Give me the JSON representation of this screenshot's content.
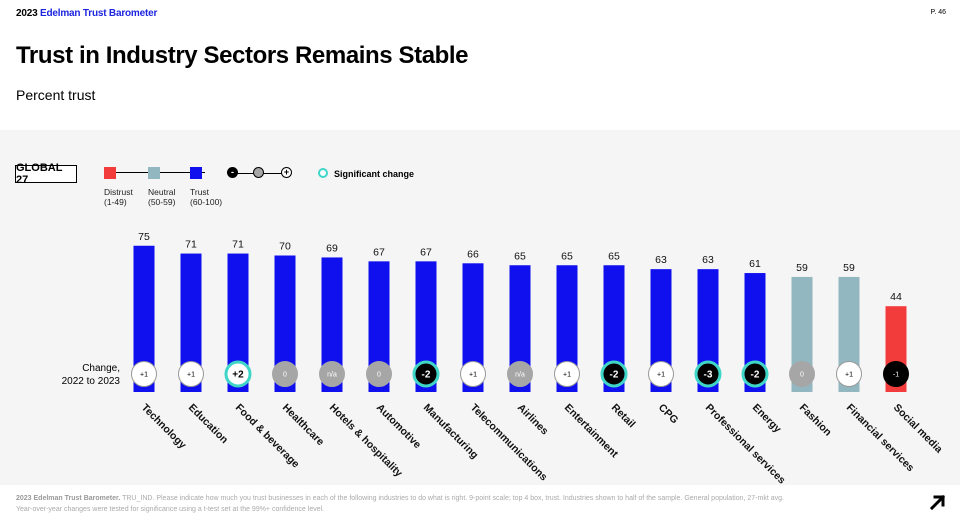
{
  "header": {
    "brand_year": "2023",
    "brand_name": "Edelman Trust Barometer",
    "page": "P. 46",
    "title": "Trust in Industry Sectors Remains Stable",
    "subtitle": "Percent trust"
  },
  "legend": {
    "global": "GLOBAL 27",
    "distrust": "Distrust",
    "distrust_range": "(1-49)",
    "neutral": "Neutral",
    "neutral_range": "(50-59)",
    "trust": "Trust",
    "trust_range": "(60-100)",
    "minus": "-",
    "plus": "+",
    "significant": "Significant change"
  },
  "change_caption_1": "Change,",
  "change_caption_2": "2022 to 2023",
  "colors": {
    "trust": "#1010ee",
    "neutral": "#93b7c0",
    "distrust": "#f23b3b",
    "significant_ring": "#3fd6c8",
    "neg_badge": "#000000",
    "zero_badge": "#a6a6a6",
    "pos_badge": "#ffffff",
    "brand": "#1d25e0"
  },
  "chart_data": {
    "type": "bar",
    "categories": [
      "Technology",
      "Education",
      "Food & beverage",
      "Healthcare",
      "Hotels & hospitality",
      "Automotive",
      "Manufacturing",
      "Telecommunications",
      "Airlines",
      "Entertainment",
      "Retail",
      "CPG",
      "Professional services",
      "Energy",
      "Fashion",
      "Financial services",
      "Social media"
    ],
    "values": [
      75,
      71,
      71,
      70,
      69,
      67,
      67,
      66,
      65,
      65,
      65,
      63,
      63,
      61,
      59,
      59,
      44
    ],
    "change": [
      "+1",
      "+1",
      "+2",
      "0",
      "n/a",
      "0",
      "-2",
      "+1",
      "n/a",
      "+1",
      "-2",
      "+1",
      "-3",
      "-2",
      "0",
      "+1",
      "-1"
    ],
    "significant": [
      false,
      false,
      true,
      false,
      false,
      false,
      true,
      false,
      false,
      false,
      true,
      false,
      true,
      true,
      false,
      false,
      false
    ],
    "ylim": [
      0,
      100
    ]
  },
  "footer": {
    "source": "2023 Edelman Trust Barometer.",
    "text1": " TRU_IND. Please indicate how much you trust businesses in each of the following industries to do what is right. 9-point scale; top 4 box, trust. Industries shown to half of the sample. General population, 27-mkt avg.",
    "text2": "Year-over-year changes were tested for significance using a t-test set at the 99%+ confidence level."
  }
}
